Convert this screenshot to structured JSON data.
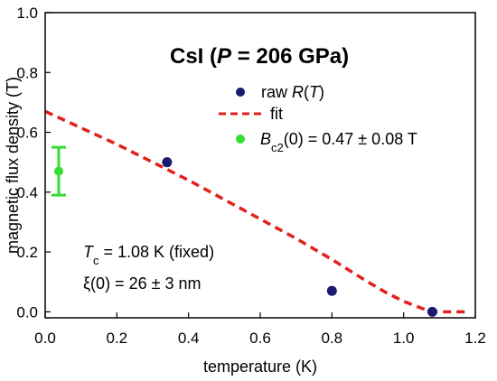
{
  "chart_data": {
    "type": "scatter",
    "title_main": "CsI (",
    "title_var": "P",
    "title_rest": " = 206 GPa)",
    "xlabel": "temperature (K)",
    "ylabel": "magnetic flux density (T)",
    "xlim": [
      0.0,
      1.2
    ],
    "ylim": [
      -0.02,
      1.0
    ],
    "xticks": [
      "0.0",
      "0.2",
      "0.4",
      "0.6",
      "0.8",
      "1.0",
      "1.2"
    ],
    "yticks": [
      "0.0",
      "0.2",
      "0.4",
      "0.6",
      "0.8",
      "1.0"
    ],
    "grid": false,
    "series": [
      {
        "name_prefix": "raw ",
        "name_var": "R",
        "name_suffix": "(",
        "name_var2": "T",
        "name_end": ")",
        "kind": "points",
        "color": "#1a1a6e",
        "x": [
          0.34,
          0.8,
          1.08
        ],
        "y": [
          0.5,
          0.07,
          0.0
        ]
      },
      {
        "name": "fit",
        "kind": "dashed-line",
        "color": "#e3201b",
        "x": [
          0.0,
          0.1,
          0.2,
          0.3,
          0.4,
          0.5,
          0.6,
          0.7,
          0.8,
          0.9,
          0.95,
          1.0,
          1.05,
          1.08,
          1.12,
          1.18
        ],
        "y": [
          0.67,
          0.615,
          0.56,
          0.5,
          0.44,
          0.375,
          0.31,
          0.245,
          0.175,
          0.1,
          0.065,
          0.035,
          0.012,
          0.0,
          0.0,
          0.0
        ]
      },
      {
        "name_var": "B",
        "name_sub": "c2",
        "name_rest": "(0) = 0.47 ± 0.08 T",
        "kind": "point-errorbar",
        "color": "#33dd33",
        "x": [
          0.0
        ],
        "y": [
          0.47
        ],
        "err": [
          0.08
        ]
      }
    ],
    "annotations": [
      {
        "var": "T",
        "sub": "c",
        "rest": " = 1.08 K (fixed)"
      },
      {
        "text": "ξ(0) = 26 ± 3 nm"
      }
    ]
  }
}
